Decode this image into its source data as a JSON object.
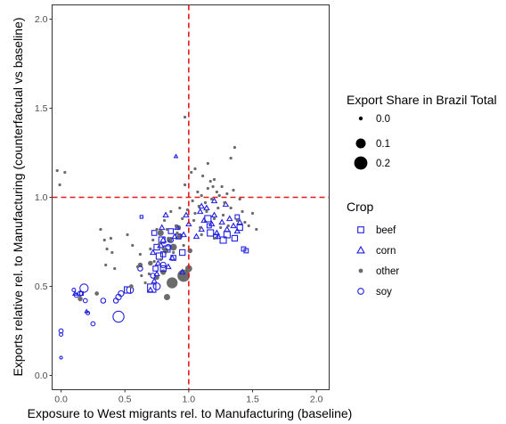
{
  "chart_data": {
    "type": "scatter",
    "xlabel": "Exposure to West migrants rel. to Manufacturing (baseline)",
    "ylabel": "Exports relative rel. to Manufacturing (counterfactual vs baseline)",
    "xlim": [
      -0.07,
      2.1
    ],
    "ylim": [
      -0.08,
      2.08
    ],
    "x_ticks": [
      0.0,
      0.5,
      1.0,
      1.5,
      2.0
    ],
    "x_tick_labels": [
      "0.0",
      "0.5",
      "1.0",
      "1.5",
      "2.0"
    ],
    "y_ticks": [
      0.0,
      0.5,
      1.0,
      1.5,
      2.0
    ],
    "y_tick_labels": [
      "0.0",
      "0.5",
      "1.0",
      "1.5",
      "2.0"
    ],
    "reference_lines": {
      "x": 1.0,
      "y": 1.0,
      "color": "#e41a1c",
      "style": "dashed"
    },
    "grid": false,
    "legend_position": "right",
    "size_legend": {
      "title": "Export Share in Brazil Total",
      "entries": [
        {
          "label": "0.0",
          "value": 0.0
        },
        {
          "label": "0.1",
          "value": 0.1
        },
        {
          "label": "0.2",
          "value": 0.2
        }
      ]
    },
    "crop_legend": {
      "title": "Crop",
      "entries": [
        {
          "label": "beef",
          "shape": "square",
          "color": "#2020e0"
        },
        {
          "label": "corn",
          "shape": "triangle",
          "color": "#2020e0"
        },
        {
          "label": "other",
          "shape": "dot",
          "color": "#6b6b6b"
        },
        {
          "label": "soy",
          "shape": "circle",
          "color": "#2020e0"
        }
      ]
    },
    "series": [
      {
        "name": "other",
        "points": [
          [
            -0.01,
            1.07,
            0.0
          ],
          [
            0.03,
            1.14,
            0.0
          ],
          [
            -0.03,
            1.15,
            0.0
          ],
          [
            0.31,
            0.82,
            0.0
          ],
          [
            0.34,
            0.76,
            0.0
          ],
          [
            0.36,
            0.71,
            0.0
          ],
          [
            0.4,
            0.69,
            0.0
          ],
          [
            0.42,
            0.6,
            0.0
          ],
          [
            0.35,
            0.62,
            0.0
          ],
          [
            0.39,
            0.77,
            0.0
          ],
          [
            0.52,
            0.79,
            0.0
          ],
          [
            0.56,
            0.73,
            0.0
          ],
          [
            0.62,
            0.68,
            0.0
          ],
          [
            0.6,
            0.61,
            0.0
          ],
          [
            0.63,
            0.56,
            0.0
          ],
          [
            0.66,
            0.52,
            0.0
          ],
          [
            0.69,
            0.57,
            0.0
          ],
          [
            0.7,
            0.71,
            0.0
          ],
          [
            0.72,
            0.76,
            0.0
          ],
          [
            0.73,
            0.64,
            0.0
          ],
          [
            0.75,
            0.82,
            0.0
          ],
          [
            0.77,
            0.74,
            0.0
          ],
          [
            0.78,
            0.65,
            0.0
          ],
          [
            0.8,
            0.71,
            0.0
          ],
          [
            0.81,
            0.87,
            0.0
          ],
          [
            0.83,
            0.82,
            0.0
          ],
          [
            0.84,
            0.77,
            0.0
          ],
          [
            0.86,
            0.92,
            0.0
          ],
          [
            0.88,
            0.69,
            0.0
          ],
          [
            0.9,
            0.84,
            0.0
          ],
          [
            0.91,
            0.8,
            0.0
          ],
          [
            0.93,
            0.94,
            0.0
          ],
          [
            0.95,
            0.88,
            0.0
          ],
          [
            0.96,
            0.73,
            0.0
          ],
          [
            0.97,
            1.45,
            0.0
          ],
          [
            0.97,
            1.07,
            0.0
          ],
          [
            0.99,
            0.93,
            0.0
          ],
          [
            1.02,
            1.14,
            0.0
          ],
          [
            1.03,
            0.98,
            0.0
          ],
          [
            1.04,
            0.87,
            0.0
          ],
          [
            1.05,
            0.91,
            0.0
          ],
          [
            1.07,
            1.03,
            0.0
          ],
          [
            1.08,
            0.95,
            0.0
          ],
          [
            1.09,
            0.83,
            0.0
          ],
          [
            1.1,
            1.01,
            0.0
          ],
          [
            1.11,
            1.12,
            0.0
          ],
          [
            1.13,
            0.97,
            0.0
          ],
          [
            1.14,
            0.92,
            0.0
          ],
          [
            1.15,
            1.05,
            0.0
          ],
          [
            1.17,
            1.09,
            0.0
          ],
          [
            1.18,
            0.99,
            0.0
          ],
          [
            1.19,
            1.06,
            0.0
          ],
          [
            1.2,
            0.88,
            0.0
          ],
          [
            1.22,
            1.03,
            0.0
          ],
          [
            1.23,
            0.94,
            0.0
          ],
          [
            1.24,
            1.01,
            0.0
          ],
          [
            1.26,
            1.06,
            0.0
          ],
          [
            1.27,
            0.9,
            0.0
          ],
          [
            1.28,
            0.97,
            0.0
          ],
          [
            1.3,
            1.02,
            0.0
          ],
          [
            1.31,
            0.84,
            0.0
          ],
          [
            1.33,
            0.94,
            0.0
          ],
          [
            1.35,
            1.04,
            0.0
          ],
          [
            1.36,
            1.28,
            0.0
          ],
          [
            1.38,
            0.87,
            0.0
          ],
          [
            1.4,
            0.99,
            0.0
          ],
          [
            1.42,
            0.92,
            0.0
          ],
          [
            1.44,
            0.86,
            0.0
          ],
          [
            1.47,
            0.84,
            0.0
          ],
          [
            1.5,
            0.91,
            0.0
          ],
          [
            1.53,
            0.82,
            0.0
          ],
          [
            1.1,
            0.79,
            0.0
          ],
          [
            1.2,
            0.77,
            0.0
          ],
          [
            1.25,
            0.83,
            0.0
          ],
          [
            1.33,
            1.22,
            0.0
          ],
          [
            1.15,
            1.19,
            0.0
          ],
          [
            1.05,
            1.16,
            0.0
          ],
          [
            1.2,
            1.1,
            0.0
          ],
          [
            0.15,
            0.43,
            0.03
          ],
          [
            0.28,
            0.46,
            0.02
          ],
          [
            0.55,
            0.5,
            0.02
          ],
          [
            0.82,
            0.7,
            0.04
          ],
          [
            0.88,
            0.72,
            0.06
          ],
          [
            0.78,
            0.8,
            0.05
          ],
          [
            0.85,
            0.76,
            0.04
          ],
          [
            0.92,
            0.83,
            0.03
          ],
          [
            0.8,
            0.58,
            0.04
          ],
          [
            0.87,
            0.52,
            0.12
          ],
          [
            0.83,
            0.44,
            0.05
          ],
          [
            0.75,
            0.55,
            0.03
          ],
          [
            0.7,
            0.63,
            0.03
          ],
          [
            0.96,
            0.56,
            0.14
          ],
          [
            1.0,
            0.6,
            0.06
          ],
          [
            1.01,
            0.7,
            0.03
          ],
          [
            0.93,
            0.78,
            0.04
          ],
          [
            0.62,
            0.62,
            0.03
          ]
        ]
      },
      {
        "name": "beef",
        "points": [
          [
            0.16,
            0.46,
            0.01
          ],
          [
            0.52,
            0.48,
            0.05
          ],
          [
            0.63,
            0.89,
            0.0
          ],
          [
            0.71,
            0.49,
            0.08
          ],
          [
            0.74,
            0.6,
            0.03
          ],
          [
            0.77,
            0.67,
            0.05
          ],
          [
            0.8,
            0.6,
            0.04
          ],
          [
            0.8,
            0.68,
            0.03
          ],
          [
            0.83,
            0.71,
            0.05
          ],
          [
            0.75,
            0.72,
            0.04
          ],
          [
            0.79,
            0.76,
            0.05
          ],
          [
            0.88,
            0.66,
            0.03
          ],
          [
            0.95,
            0.69,
            0.04
          ],
          [
            1.15,
            0.88,
            0.05
          ],
          [
            1.17,
            0.8,
            0.05
          ],
          [
            1.27,
            0.76,
            0.05
          ],
          [
            1.3,
            0.79,
            0.05
          ],
          [
            1.36,
            0.77,
            0.04
          ],
          [
            1.4,
            0.83,
            0.04
          ],
          [
            1.45,
            0.7,
            0.02
          ],
          [
            1.43,
            0.71,
            0.02
          ],
          [
            1.21,
            0.78,
            0.02
          ],
          [
            1.38,
            0.89,
            0.02
          ],
          [
            0.92,
            0.78,
            0.03
          ],
          [
            0.86,
            0.81,
            0.03
          ],
          [
            0.73,
            0.8,
            0.03
          ],
          [
            1.16,
            0.84,
            0.02
          ]
        ]
      },
      {
        "name": "corn",
        "points": [
          [
            0.11,
            0.46,
            0.01
          ],
          [
            0.2,
            0.36,
            0.0
          ],
          [
            0.7,
            0.48,
            0.02
          ],
          [
            0.73,
            0.53,
            0.02
          ],
          [
            0.75,
            0.57,
            0.02
          ],
          [
            0.76,
            0.63,
            0.02
          ],
          [
            0.78,
            0.73,
            0.03
          ],
          [
            0.79,
            0.83,
            0.02
          ],
          [
            0.8,
            0.76,
            0.03
          ],
          [
            0.82,
            0.9,
            0.02
          ],
          [
            0.87,
            0.66,
            0.02
          ],
          [
            0.89,
            0.78,
            0.02
          ],
          [
            0.91,
            0.83,
            0.02
          ],
          [
            0.96,
            0.79,
            0.02
          ],
          [
            0.98,
            0.9,
            0.02
          ],
          [
            0.9,
            1.23,
            0.0
          ],
          [
            1.0,
            0.85,
            0.02
          ],
          [
            1.06,
            0.78,
            0.02
          ],
          [
            1.09,
            0.92,
            0.02
          ],
          [
            1.1,
            0.82,
            0.02
          ],
          [
            1.12,
            0.87,
            0.02
          ],
          [
            1.14,
            0.94,
            0.02
          ],
          [
            1.18,
            0.85,
            0.02
          ],
          [
            1.2,
            0.9,
            0.02
          ],
          [
            1.22,
            0.8,
            0.02
          ],
          [
            1.26,
            0.86,
            0.02
          ],
          [
            1.3,
            0.82,
            0.02
          ],
          [
            1.32,
            0.88,
            0.02
          ],
          [
            1.35,
            0.84,
            0.02
          ],
          [
            1.38,
            0.81,
            0.02
          ],
          [
            1.4,
            0.86,
            0.02
          ],
          [
            1.2,
            0.98,
            0.02
          ],
          [
            1.29,
            0.96,
            0.02
          ],
          [
            0.95,
            0.58,
            0.02
          ],
          [
            0.84,
            0.61,
            0.02
          ],
          [
            0.72,
            0.69,
            0.02
          ],
          [
            1.1,
            0.95,
            0.02
          ],
          [
            1.23,
            0.78,
            0.02
          ]
        ]
      },
      {
        "name": "soy",
        "points": [
          [
            0.0,
            0.25,
            0.02
          ],
          [
            0.0,
            0.23,
            0.01
          ],
          [
            0.0,
            0.1,
            0.0
          ],
          [
            0.1,
            0.48,
            0.01
          ],
          [
            0.12,
            0.45,
            0.02
          ],
          [
            0.15,
            0.46,
            0.03
          ],
          [
            0.18,
            0.49,
            0.08
          ],
          [
            0.19,
            0.42,
            0.02
          ],
          [
            0.21,
            0.35,
            0.01
          ],
          [
            0.25,
            0.29,
            0.02
          ],
          [
            0.33,
            0.42,
            0.03
          ],
          [
            0.43,
            0.42,
            0.03
          ],
          [
            0.45,
            0.44,
            0.04
          ],
          [
            0.47,
            0.46,
            0.04
          ],
          [
            0.45,
            0.33,
            0.12
          ],
          [
            0.54,
            0.48,
            0.06
          ],
          [
            0.62,
            0.6,
            0.03
          ],
          [
            0.75,
            0.5,
            0.06
          ],
          [
            0.8,
            0.62,
            0.04
          ],
          [
            0.84,
            0.72,
            0.04
          ],
          [
            0.86,
            0.76,
            0.03
          ],
          [
            0.72,
            0.56,
            0.03
          ]
        ]
      }
    ]
  }
}
